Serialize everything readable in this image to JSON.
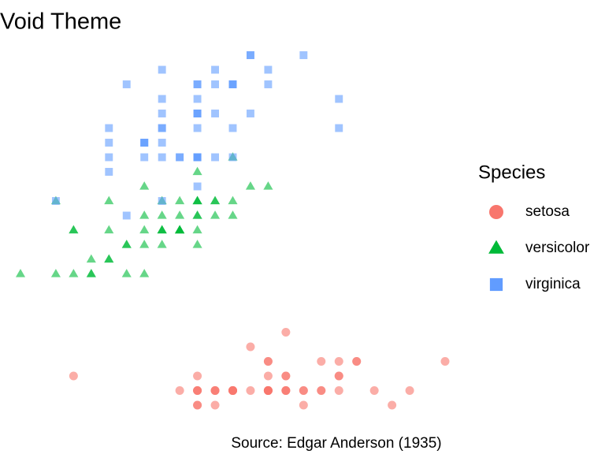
{
  "chart_data": {
    "type": "scatter",
    "title": "Void Theme",
    "caption": "Source: Edgar Anderson (1935)",
    "legend_title": "Species",
    "legend_position": "right",
    "xlim": [
      2.0,
      4.4
    ],
    "ylim": [
      0.1,
      2.5
    ],
    "series": [
      {
        "name": "setosa",
        "color": "#F8766D",
        "shape": "circle",
        "x": [
          3.5,
          3.0,
          3.2,
          3.1,
          3.6,
          3.9,
          3.4,
          3.4,
          2.9,
          3.1,
          3.7,
          3.4,
          3.0,
          3.0,
          4.0,
          4.4,
          3.9,
          3.5,
          3.8,
          3.8,
          3.4,
          3.7,
          3.6,
          3.3,
          3.4,
          3.0,
          3.4,
          3.5,
          3.4,
          3.2,
          3.1,
          3.4,
          4.1,
          4.2,
          3.1,
          3.2,
          3.5,
          3.6,
          3.0,
          3.4,
          3.5,
          2.3,
          3.2,
          3.5,
          3.8,
          3.0,
          3.8,
          3.2,
          3.7,
          3.3
        ],
        "values": [
          0.2,
          0.2,
          0.2,
          0.2,
          0.2,
          0.4,
          0.3,
          0.2,
          0.2,
          0.1,
          0.2,
          0.2,
          0.1,
          0.1,
          0.2,
          0.4,
          0.4,
          0.3,
          0.3,
          0.3,
          0.2,
          0.4,
          0.2,
          0.5,
          0.2,
          0.2,
          0.4,
          0.2,
          0.2,
          0.2,
          0.2,
          0.4,
          0.1,
          0.2,
          0.2,
          0.2,
          0.2,
          0.1,
          0.2,
          0.2,
          0.3,
          0.3,
          0.2,
          0.6,
          0.4,
          0.3,
          0.2,
          0.2,
          0.2,
          0.2
        ]
      },
      {
        "name": "versicolor",
        "color": "#00BA38",
        "shape": "triangle",
        "x": [
          3.2,
          3.2,
          3.1,
          2.3,
          2.8,
          2.8,
          3.3,
          2.4,
          2.9,
          2.7,
          2.0,
          3.0,
          2.2,
          2.9,
          2.9,
          3.1,
          3.0,
          2.7,
          2.2,
          2.5,
          3.2,
          2.8,
          2.5,
          2.8,
          2.9,
          3.0,
          2.8,
          3.0,
          2.9,
          2.6,
          2.4,
          2.4,
          2.7,
          2.7,
          3.0,
          3.4,
          3.1,
          2.3,
          3.0,
          2.5,
          2.6,
          3.0,
          2.6,
          2.3,
          2.7,
          3.0,
          2.9,
          2.9,
          2.5,
          2.8
        ],
        "values": [
          1.4,
          1.5,
          1.5,
          1.3,
          1.5,
          1.3,
          1.6,
          1.0,
          1.3,
          1.4,
          1.0,
          1.5,
          1.0,
          1.4,
          1.3,
          1.4,
          1.5,
          1.0,
          1.5,
          1.1,
          1.8,
          1.3,
          1.5,
          1.2,
          1.3,
          1.4,
          1.4,
          1.7,
          1.5,
          1.0,
          1.1,
          1.0,
          1.2,
          1.6,
          1.5,
          1.6,
          1.5,
          1.3,
          1.3,
          1.3,
          1.2,
          1.4,
          1.2,
          1.0,
          1.3,
          1.2,
          1.3,
          1.3,
          1.1,
          1.3
        ]
      },
      {
        "name": "virginica",
        "color": "#619CFF",
        "shape": "square",
        "x": [
          3.3,
          2.7,
          3.0,
          2.9,
          3.0,
          3.0,
          2.5,
          2.9,
          2.5,
          3.6,
          3.2,
          2.7,
          3.0,
          2.5,
          2.8,
          3.2,
          3.0,
          3.8,
          2.6,
          2.2,
          3.2,
          2.8,
          2.8,
          2.7,
          3.3,
          3.2,
          2.8,
          3.0,
          2.8,
          3.0,
          2.8,
          3.8,
          2.8,
          2.8,
          2.6,
          3.0,
          3.4,
          3.1,
          3.0,
          3.1,
          3.1,
          3.1,
          2.7,
          3.2,
          3.3,
          3.0,
          2.5,
          3.0,
          3.4,
          3.0
        ],
        "values": [
          2.5,
          1.9,
          2.1,
          1.8,
          2.2,
          2.1,
          1.7,
          1.8,
          1.8,
          2.5,
          2.0,
          1.9,
          2.1,
          2.0,
          2.4,
          2.3,
          1.8,
          2.2,
          2.3,
          1.5,
          2.3,
          2.0,
          2.0,
          1.8,
          2.1,
          1.8,
          1.8,
          1.8,
          2.1,
          1.6,
          1.9,
          2.0,
          2.2,
          1.5,
          1.4,
          2.3,
          2.4,
          1.8,
          1.8,
          2.1,
          2.4,
          2.3,
          1.9,
          2.3,
          2.5,
          2.3,
          1.9,
          2.0,
          2.3,
          1.8
        ]
      }
    ]
  }
}
